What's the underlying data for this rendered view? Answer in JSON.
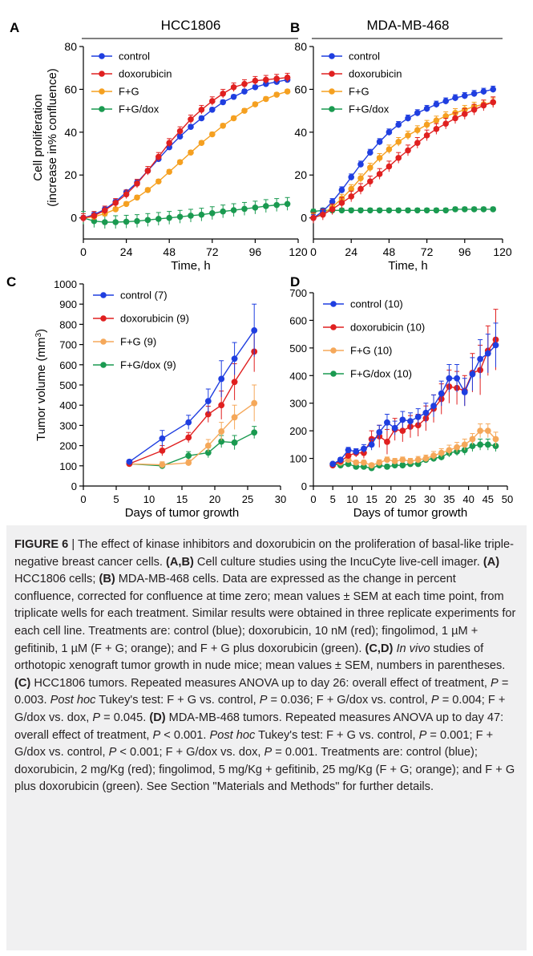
{
  "chart_data": [
    {
      "panel": "A",
      "type": "line",
      "title": "HCC1806",
      "xlabel": "Time, h",
      "ylabel": "Cell proliferation (increase in% confluence)",
      "xlim": [
        0,
        120
      ],
      "ylim": [
        -5,
        80
      ],
      "xticks": [
        "0",
        "24",
        "48",
        "72",
        "96",
        "120"
      ],
      "yticks": [
        "0",
        "20",
        "40",
        "60",
        "80"
      ],
      "legend": "top-left",
      "series": [
        {
          "name": "control",
          "color": "#1f3ee0",
          "err": 1.0,
          "x": [
            0,
            6,
            12,
            18,
            24,
            30,
            36,
            42,
            48,
            54,
            60,
            66,
            72,
            78,
            84,
            90,
            96,
            102,
            108,
            114
          ],
          "y": [
            0,
            1.5,
            4,
            7.5,
            12,
            16.5,
            22,
            27.5,
            33,
            38,
            42.5,
            46.5,
            50.5,
            54,
            56.5,
            59,
            61,
            62.5,
            63.5,
            64.5
          ]
        },
        {
          "name": "doxorubicin",
          "color": "#e02020",
          "err": 2.0,
          "x": [
            0,
            6,
            12,
            18,
            24,
            30,
            36,
            42,
            48,
            54,
            60,
            66,
            72,
            78,
            84,
            90,
            96,
            102,
            108,
            114
          ],
          "y": [
            0,
            1,
            3.5,
            7,
            11,
            16,
            22,
            28.5,
            35,
            40.5,
            46,
            50.5,
            54.5,
            58,
            61,
            62.5,
            64,
            64.5,
            65,
            65.5
          ]
        },
        {
          "name": "F+G",
          "color": "#f5a020",
          "err": 1.0,
          "x": [
            0,
            6,
            12,
            18,
            24,
            30,
            36,
            42,
            48,
            54,
            60,
            66,
            72,
            78,
            84,
            90,
            96,
            102,
            108,
            114
          ],
          "y": [
            0,
            0.5,
            2,
            4,
            6.5,
            9.5,
            13,
            17,
            21.5,
            26,
            30.5,
            35,
            39,
            43,
            46.5,
            50,
            53,
            55.5,
            57.5,
            59
          ]
        },
        {
          "name": "F+G/dox",
          "color": "#1a9a50",
          "err": 3.0,
          "x": [
            0,
            6,
            12,
            18,
            24,
            30,
            36,
            42,
            48,
            54,
            60,
            66,
            72,
            78,
            84,
            90,
            96,
            102,
            108,
            114
          ],
          "y": [
            0,
            -1.5,
            -2,
            -2,
            -1.8,
            -1.5,
            -1,
            -0.5,
            0,
            0.5,
            1,
            1.5,
            2.2,
            3,
            3.6,
            4.2,
            4.8,
            5.5,
            6,
            6.5
          ]
        }
      ]
    },
    {
      "panel": "B",
      "type": "line",
      "title": "MDA-MB-468",
      "xlabel": "Time, h",
      "ylabel": "",
      "xlim": [
        0,
        120
      ],
      "ylim": [
        -5,
        80
      ],
      "xticks": [
        "0",
        "24",
        "48",
        "72",
        "96",
        "120"
      ],
      "yticks": [
        "0",
        "20",
        "40",
        "60",
        "80"
      ],
      "legend": "top-left",
      "series": [
        {
          "name": "control",
          "color": "#1f3ee0",
          "err": 1.5,
          "x": [
            0,
            6,
            12,
            18,
            24,
            30,
            36,
            42,
            48,
            54,
            60,
            66,
            72,
            78,
            84,
            90,
            96,
            102,
            108,
            114
          ],
          "y": [
            0,
            3,
            7.5,
            13,
            19,
            25,
            30.5,
            35.5,
            40,
            43.5,
            46.5,
            49,
            51,
            53,
            54.5,
            56,
            57,
            58,
            59,
            60
          ]
        },
        {
          "name": "doxorubicin",
          "color": "#e02020",
          "err": 2.5,
          "x": [
            0,
            6,
            12,
            18,
            24,
            30,
            36,
            42,
            48,
            54,
            60,
            66,
            72,
            78,
            84,
            90,
            96,
            102,
            108,
            114
          ],
          "y": [
            0,
            1.5,
            4,
            7,
            10,
            13.5,
            17,
            20.5,
            24,
            28,
            31.5,
            35,
            38.5,
            41.5,
            44,
            46.5,
            48.5,
            50.5,
            52.5,
            54
          ]
        },
        {
          "name": "F+G",
          "color": "#f5a020",
          "err": 2.0,
          "x": [
            0,
            6,
            12,
            18,
            24,
            30,
            36,
            42,
            48,
            54,
            60,
            66,
            72,
            78,
            84,
            90,
            96,
            102,
            108,
            114
          ],
          "y": [
            0,
            2,
            5,
            9,
            13.5,
            18.5,
            23.5,
            28,
            32,
            35.5,
            38.5,
            41,
            43.5,
            45.5,
            47.5,
            49,
            50.5,
            52,
            53,
            54
          ]
        },
        {
          "name": "F+G/dox",
          "color": "#1a9a50",
          "err": 1.0,
          "x": [
            0,
            6,
            12,
            18,
            24,
            30,
            36,
            42,
            48,
            54,
            60,
            66,
            72,
            78,
            84,
            90,
            96,
            102,
            108,
            114
          ],
          "y": [
            3,
            3.5,
            3.5,
            3.5,
            3.5,
            3.5,
            3.5,
            3.5,
            3.5,
            3.5,
            3.5,
            3.5,
            3.5,
            3.5,
            3.5,
            4,
            4,
            4,
            4,
            4
          ]
        }
      ]
    },
    {
      "panel": "C",
      "type": "line",
      "title": "",
      "xlabel": "Days of tumor growth",
      "ylabel": "Tumor volume (mm3)",
      "xlim": [
        0,
        30
      ],
      "ylim": [
        0,
        1000
      ],
      "xticks": [
        "0",
        "5",
        "10",
        "15",
        "20",
        "25",
        "30"
      ],
      "yticks": [
        "0",
        "100",
        "200",
        "300",
        "400",
        "500",
        "600",
        "700",
        "800",
        "900",
        "1000"
      ],
      "legend": "top-left",
      "series": [
        {
          "name": "control (7)",
          "color": "#1f3ee0",
          "x": [
            7,
            12,
            16,
            19,
            21,
            23,
            26
          ],
          "y": [
            120,
            235,
            315,
            420,
            530,
            630,
            770
          ],
          "err": [
            10,
            40,
            35,
            60,
            90,
            80,
            130
          ]
        },
        {
          "name": "doxorubicin (9)",
          "color": "#e02020",
          "x": [
            7,
            12,
            16,
            19,
            21,
            23,
            26
          ],
          "y": [
            110,
            175,
            240,
            355,
            400,
            515,
            665
          ],
          "err": [
            10,
            25,
            25,
            40,
            70,
            90,
            100
          ]
        },
        {
          "name": "F+G (9)",
          "color": "#f5a85a",
          "x": [
            7,
            12,
            16,
            19,
            21,
            23,
            26
          ],
          "y": [
            110,
            105,
            115,
            200,
            270,
            340,
            410
          ],
          "err": [
            10,
            15,
            15,
            30,
            45,
            60,
            90
          ]
        },
        {
          "name": "F+G/dox (9)",
          "color": "#1a9a50",
          "x": [
            7,
            12,
            16,
            19,
            21,
            23,
            26
          ],
          "y": [
            110,
            100,
            150,
            165,
            220,
            215,
            265
          ],
          "err": [
            10,
            15,
            20,
            25,
            30,
            35,
            30
          ]
        }
      ]
    },
    {
      "panel": "D",
      "type": "line",
      "title": "",
      "xlabel": "Days of tumor growth",
      "ylabel": "",
      "xlim": [
        0,
        50
      ],
      "ylim": [
        0,
        700
      ],
      "xticks": [
        "0",
        "5",
        "10",
        "15",
        "20",
        "25",
        "30",
        "35",
        "40",
        "45",
        "50"
      ],
      "yticks": [
        "0",
        "100",
        "200",
        "300",
        "400",
        "500",
        "600",
        "700"
      ],
      "legend": "top-left",
      "series": [
        {
          "name": "control (10)",
          "color": "#1f3ee0",
          "x": [
            5,
            7,
            9,
            11,
            13,
            15,
            17,
            19,
            21,
            23,
            25,
            27,
            29,
            31,
            33,
            35,
            37,
            39,
            41,
            43,
            45,
            47
          ],
          "y": [
            80,
            95,
            130,
            125,
            135,
            150,
            195,
            230,
            210,
            240,
            235,
            250,
            265,
            290,
            335,
            390,
            390,
            340,
            405,
            460,
            480,
            510
          ],
          "err": [
            5,
            8,
            10,
            10,
            15,
            20,
            25,
            30,
            25,
            30,
            30,
            30,
            35,
            40,
            45,
            50,
            50,
            50,
            60,
            70,
            70,
            80
          ]
        },
        {
          "name": "doxorubicin (10)",
          "color": "#e02020",
          "x": [
            5,
            7,
            9,
            11,
            13,
            15,
            17,
            19,
            21,
            23,
            25,
            27,
            29,
            31,
            33,
            35,
            37,
            39,
            41,
            43,
            45,
            47
          ],
          "y": [
            75,
            90,
            110,
            120,
            120,
            170,
            180,
            160,
            205,
            200,
            215,
            220,
            245,
            280,
            315,
            360,
            355,
            345,
            410,
            420,
            490,
            530
          ],
          "err": [
            5,
            8,
            10,
            15,
            20,
            30,
            40,
            45,
            40,
            40,
            40,
            40,
            45,
            50,
            55,
            60,
            60,
            55,
            70,
            90,
            90,
            110
          ]
        },
        {
          "name": "F+G (10)",
          "color": "#f5a85a",
          "x": [
            5,
            7,
            9,
            11,
            13,
            15,
            17,
            19,
            21,
            23,
            25,
            27,
            29,
            31,
            33,
            35,
            37,
            39,
            41,
            43,
            45,
            47
          ],
          "y": [
            80,
            85,
            95,
            85,
            85,
            75,
            85,
            95,
            90,
            95,
            90,
            95,
            100,
            110,
            120,
            130,
            140,
            150,
            170,
            200,
            200,
            170
          ],
          "err": [
            5,
            5,
            8,
            8,
            8,
            8,
            10,
            10,
            10,
            10,
            10,
            12,
            12,
            15,
            15,
            18,
            18,
            20,
            20,
            25,
            25,
            25
          ]
        },
        {
          "name": "F+G/dox (10)",
          "color": "#1a9a50",
          "x": [
            5,
            7,
            9,
            11,
            13,
            15,
            17,
            19,
            21,
            23,
            25,
            27,
            29,
            31,
            33,
            35,
            37,
            39,
            41,
            43,
            45,
            47
          ],
          "y": [
            80,
            75,
            80,
            70,
            70,
            65,
            75,
            70,
            75,
            75,
            80,
            80,
            95,
            100,
            105,
            120,
            125,
            130,
            145,
            150,
            150,
            145
          ],
          "err": [
            5,
            5,
            8,
            8,
            8,
            8,
            8,
            8,
            8,
            8,
            8,
            10,
            10,
            12,
            12,
            15,
            15,
            18,
            20,
            20,
            20,
            20
          ]
        }
      ]
    }
  ],
  "caption": {
    "label": "FIGURE 6",
    "text": " | The effect of kinase inhibitors and doxorubicin on the proliferation of basal-like triple-negative breast cancer cells. (A,B) Cell culture studies using the IncuCyte live-cell imager. (A) HCC1806 cells; (B) MDA-MB-468 cells. Data are expressed as the change in percent confluence, corrected for confluence at time zero; mean values ± SEM at each time point, from triplicate wells for each treatment. Similar results were obtained in three replicate experiments for each cell line. Treatments are: control (blue); doxorubicin, 10 nM (red); fingolimod, 1 µM + gefitinib, 1 µM (F + G; orange); and F + G plus doxorubicin (green). (C,D) In vivo studies of orthotopic xenograft tumor growth in nude mice; mean values ± SEM, numbers in parentheses. (C) HCC1806 tumors. Repeated measures ANOVA up to day 26: overall effect of treatment, P = 0.003. Post hoc Tukey's test: F + G vs. control, P = 0.036; F + G/dox vs. control, P = 0.004; F + G/dox vs. dox, P = 0.045. (D) MDA-MB-468 tumors. Repeated measures ANOVA up to day 47: overall effect of treatment, P < 0.001. Post hoc Tukey's test: F + G vs. control, P = 0.001; F + G/dox vs. control, P < 0.001; F + G/dox vs. dox, P = 0.001. Treatments are: control (blue); doxorubicin, 2 mg/Kg (red); fingolimod, 5 mg/Kg + gefitinib, 25 mg/Kg (F + G; orange); and F + G plus doxorubicin (green). See Section \"Materials and Methods\" for further details."
  }
}
